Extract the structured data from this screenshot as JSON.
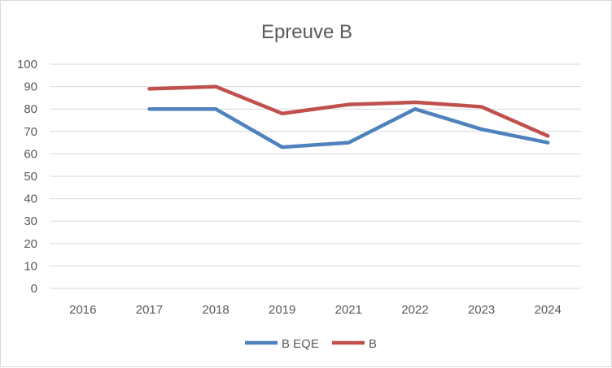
{
  "chart_data": {
    "type": "line",
    "title": "Epreuve B",
    "categories": [
      "2016",
      "2017",
      "2018",
      "2019",
      "2021",
      "2022",
      "2023",
      "2024"
    ],
    "ylim": [
      0,
      100
    ],
    "yticks": [
      0,
      10,
      20,
      30,
      40,
      50,
      60,
      70,
      80,
      90,
      100
    ],
    "grid": true,
    "legend_position": "bottom",
    "series": [
      {
        "name": "B EQE",
        "color": "#4f81bd",
        "values": [
          null,
          80,
          80,
          63,
          65,
          80,
          71,
          65
        ]
      },
      {
        "name": "B",
        "color": "#c0504d",
        "values": [
          null,
          89,
          90,
          78,
          82,
          83,
          81,
          68
        ]
      }
    ]
  }
}
